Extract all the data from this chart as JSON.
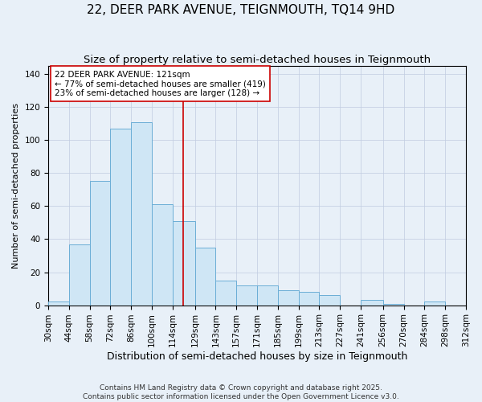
{
  "title": "22, DEER PARK AVENUE, TEIGNMOUTH, TQ14 9HD",
  "subtitle": "Size of property relative to semi-detached houses in Teignmouth",
  "xlabel": "Distribution of semi-detached houses by size in Teignmouth",
  "ylabel": "Number of semi-detached properties",
  "footnote1": "Contains HM Land Registry data © Crown copyright and database right 2025.",
  "footnote2": "Contains public sector information licensed under the Open Government Licence v3.0.",
  "bin_edges": [
    30,
    44,
    58,
    72,
    86,
    100,
    114,
    129,
    143,
    157,
    171,
    185,
    199,
    213,
    227,
    241,
    256,
    270,
    284,
    298,
    312
  ],
  "bin_labels": [
    "30sqm",
    "44sqm",
    "58sqm",
    "72sqm",
    "86sqm",
    "100sqm",
    "114sqm",
    "129sqm",
    "143sqm",
    "157sqm",
    "171sqm",
    "185sqm",
    "199sqm",
    "213sqm",
    "227sqm",
    "241sqm",
    "256sqm",
    "270sqm",
    "284sqm",
    "298sqm",
    "312sqm"
  ],
  "counts": [
    2,
    37,
    75,
    107,
    111,
    61,
    51,
    35,
    15,
    12,
    12,
    9,
    8,
    6,
    0,
    3,
    1,
    0,
    2,
    0
  ],
  "bar_color": "#cfe6f5",
  "bar_edge_color": "#6baed6",
  "subject_value": 121,
  "subject_line_color": "#cc0000",
  "annotation_line1": "22 DEER PARK AVENUE: 121sqm",
  "annotation_line2": "← 77% of semi-detached houses are smaller (419)",
  "annotation_line3": "23% of semi-detached houses are larger (128) →",
  "annotation_box_color": "#ffffff",
  "annotation_border_color": "#cc0000",
  "background_color": "#e8f0f8",
  "ylim": [
    0,
    145
  ],
  "yticks": [
    0,
    20,
    40,
    60,
    80,
    100,
    120,
    140
  ],
  "title_fontsize": 11,
  "subtitle_fontsize": 9.5,
  "ylabel_fontsize": 8,
  "xlabel_fontsize": 9,
  "tick_fontsize": 7.5,
  "annotation_fontsize": 7.5,
  "footnote_fontsize": 6.5
}
